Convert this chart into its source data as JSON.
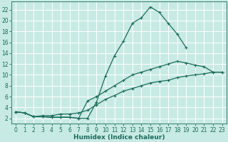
{
  "xlabel": "Humidex (Indice chaleur)",
  "bg_color": "#c8eae4",
  "grid_color": "#ffffff",
  "line_color": "#1a6b5a",
  "xlim": [
    -0.5,
    23.5
  ],
  "ylim": [
    1.0,
    23.5
  ],
  "xticks": [
    0,
    1,
    2,
    3,
    4,
    5,
    6,
    7,
    8,
    9,
    10,
    11,
    12,
    13,
    14,
    15,
    16,
    17,
    18,
    19,
    20,
    21,
    22,
    23
  ],
  "yticks": [
    2,
    4,
    6,
    8,
    10,
    12,
    14,
    16,
    18,
    20,
    22
  ],
  "line1_x": [
    0,
    1,
    2,
    3,
    4,
    5,
    6,
    7,
    8,
    9,
    10,
    11,
    12,
    13,
    14,
    15,
    16,
    17,
    18,
    19
  ],
  "line1_y": [
    3.2,
    3.0,
    2.3,
    2.3,
    2.2,
    2.2,
    2.2,
    2.0,
    2.0,
    5.0,
    9.8,
    13.5,
    16.2,
    19.5,
    20.5,
    22.5,
    21.5,
    19.5,
    17.5,
    15.0
  ],
  "line2_x": [
    0,
    1,
    2,
    3,
    4,
    5,
    6,
    7,
    8,
    9,
    10,
    11,
    12,
    13,
    14,
    15,
    16,
    17,
    18,
    19,
    20,
    21,
    22,
    23
  ],
  "line2_y": [
    3.2,
    3.0,
    2.3,
    2.3,
    2.2,
    2.2,
    2.2,
    2.0,
    5.2,
    6.0,
    7.0,
    8.0,
    9.0,
    10.0,
    10.5,
    11.0,
    11.5,
    12.0,
    12.5,
    12.2,
    11.8,
    11.5,
    10.5,
    10.5
  ],
  "line3_x": [
    0,
    1,
    2,
    3,
    4,
    5,
    6,
    7,
    8,
    9,
    10,
    11,
    12,
    13,
    14,
    15,
    16,
    17,
    18,
    19,
    20,
    21,
    22,
    23
  ],
  "line3_y": [
    3.2,
    3.0,
    2.3,
    2.5,
    2.5,
    2.8,
    2.8,
    3.0,
    3.5,
    4.5,
    5.5,
    6.2,
    7.0,
    7.5,
    8.0,
    8.5,
    8.8,
    9.0,
    9.5,
    9.8,
    10.0,
    10.2,
    10.5,
    10.5
  ],
  "tick_fontsize": 5.5,
  "xlabel_fontsize": 6.5,
  "linewidth": 0.9,
  "markersize": 2.5
}
